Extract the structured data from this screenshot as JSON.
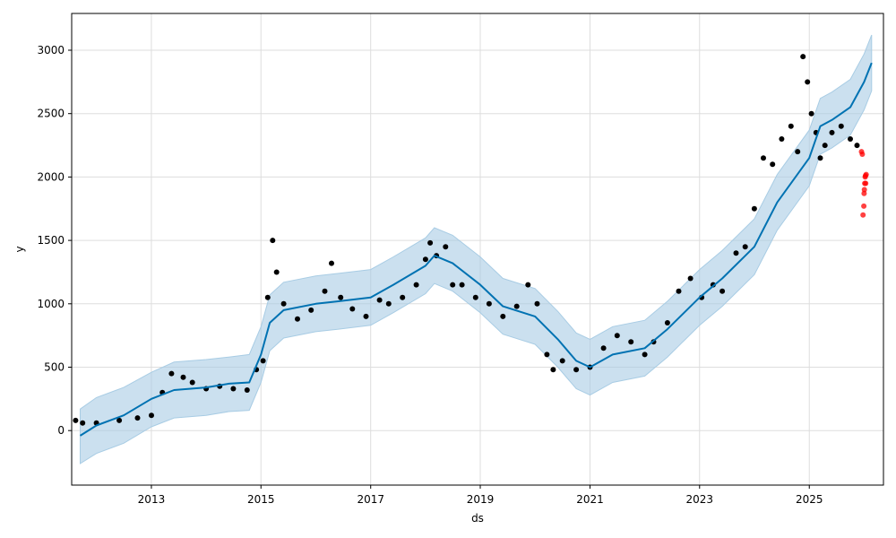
{
  "chart_data": {
    "type": "line",
    "title": "",
    "xlabel": "ds",
    "ylabel": "y",
    "x_ticks": [
      "2013",
      "2015",
      "2017",
      "2019",
      "2021",
      "2023",
      "2025"
    ],
    "y_ticks": [
      "0",
      "500",
      "1000",
      "1500",
      "2000",
      "2500",
      "3000"
    ],
    "xlim": [
      "2011-07-20",
      "2026-05-10"
    ],
    "ylim": [
      -430,
      3290
    ],
    "grid": true,
    "legend": "none",
    "colors": {
      "forecast": "#0072B2",
      "interval": "#A8CCE4",
      "observed": "#000000",
      "holdout": "#FF0000",
      "grid": "#DDDDDD"
    },
    "series": [
      {
        "role": "forecast",
        "x": [
          "2011-09-15",
          "2012-01-01",
          "2012-07-01",
          "2013-01-01",
          "2013-06-01",
          "2014-01-01",
          "2014-06-01",
          "2014-10-15",
          "2015-01-01",
          "2015-03-01",
          "2015-06-01",
          "2016-01-01",
          "2016-06-01",
          "2017-01-01",
          "2017-06-01",
          "2018-01-01",
          "2018-03-01",
          "2018-07-01",
          "2019-01-01",
          "2019-06-01",
          "2020-01-01",
          "2020-06-01",
          "2020-10-01",
          "2021-01-01",
          "2021-06-01",
          "2022-01-01",
          "2022-06-01",
          "2023-01-01",
          "2023-06-01",
          "2024-01-01",
          "2024-06-01",
          "2025-01-01",
          "2025-03-15",
          "2025-06-01",
          "2025-10-01",
          "2026-01-01",
          "2026-02-20"
        ],
        "y": [
          -40,
          40,
          120,
          250,
          320,
          340,
          370,
          380,
          600,
          850,
          950,
          1000,
          1020,
          1050,
          1150,
          1300,
          1380,
          1320,
          1150,
          980,
          900,
          720,
          550,
          500,
          600,
          650,
          800,
          1050,
          1200,
          1450,
          1800,
          2150,
          2400,
          2450,
          2550,
          2750,
          2900
        ]
      },
      {
        "role": "interval",
        "x": [
          "2011-09-15",
          "2012-01-01",
          "2012-07-01",
          "2013-01-01",
          "2013-06-01",
          "2014-01-01",
          "2014-06-01",
          "2014-10-15",
          "2015-01-01",
          "2015-03-01",
          "2015-06-01",
          "2016-01-01",
          "2016-06-01",
          "2017-01-01",
          "2017-06-01",
          "2018-01-01",
          "2018-03-01",
          "2018-07-01",
          "2019-01-01",
          "2019-06-01",
          "2020-01-01",
          "2020-06-01",
          "2020-10-01",
          "2021-01-01",
          "2021-06-01",
          "2022-01-01",
          "2022-06-01",
          "2023-01-01",
          "2023-06-01",
          "2024-01-01",
          "2024-06-01",
          "2025-01-01",
          "2025-03-15",
          "2025-06-01",
          "2025-10-01",
          "2026-01-01",
          "2026-02-20"
        ],
        "upper": [
          170,
          260,
          340,
          460,
          540,
          560,
          580,
          600,
          820,
          1070,
          1170,
          1220,
          1240,
          1270,
          1370,
          1520,
          1600,
          1540,
          1370,
          1200,
          1120,
          940,
          770,
          720,
          820,
          870,
          1020,
          1270,
          1420,
          1670,
          2020,
          2370,
          2620,
          2670,
          2770,
          2970,
          3120
        ],
        "lower": [
          -260,
          -180,
          -100,
          30,
          100,
          120,
          150,
          160,
          380,
          630,
          730,
          780,
          800,
          830,
          930,
          1080,
          1160,
          1100,
          930,
          760,
          680,
          500,
          330,
          280,
          380,
          430,
          580,
          830,
          980,
          1230,
          1580,
          1930,
          2180,
          2230,
          2330,
          2530,
          2680
        ]
      },
      {
        "role": "observed",
        "x": [
          "2011-08-15",
          "2011-10-01",
          "2012-01-01",
          "2012-06-01",
          "2012-10-01",
          "2013-01-01",
          "2013-03-15",
          "2013-05-15",
          "2013-08-01",
          "2013-10-01",
          "2014-01-01",
          "2014-04-01",
          "2014-07-01",
          "2014-10-01",
          "2014-12-01",
          "2015-01-15",
          "2015-02-15",
          "2015-03-20",
          "2015-04-15",
          "2015-06-01",
          "2015-09-01",
          "2015-12-01",
          "2016-03-01",
          "2016-04-15",
          "2016-06-15",
          "2016-09-01",
          "2016-12-01",
          "2017-03-01",
          "2017-05-01",
          "2017-08-01",
          "2017-11-01",
          "2018-01-01",
          "2018-02-01",
          "2018-03-15",
          "2018-05-15",
          "2018-07-01",
          "2018-09-01",
          "2018-12-01",
          "2019-03-01",
          "2019-06-01",
          "2019-09-01",
          "2019-11-15",
          "2020-01-15",
          "2020-03-20",
          "2020-05-01",
          "2020-07-01",
          "2020-10-01",
          "2021-01-01",
          "2021-04-01",
          "2021-07-01",
          "2021-10-01",
          "2022-01-01",
          "2022-03-01",
          "2022-06-01",
          "2022-08-15",
          "2022-11-01",
          "2023-01-15",
          "2023-04-01",
          "2023-06-01",
          "2023-09-01",
          "2023-11-01",
          "2024-01-01",
          "2024-03-01",
          "2024-05-01",
          "2024-07-01",
          "2024-09-01",
          "2024-10-15",
          "2024-11-20",
          "2024-12-20",
          "2025-01-15",
          "2025-02-15",
          "2025-03-15",
          "2025-04-15",
          "2025-06-01",
          "2025-08-01",
          "2025-10-01",
          "2025-11-15"
        ],
        "y": [
          80,
          60,
          60,
          80,
          100,
          120,
          300,
          450,
          420,
          380,
          330,
          350,
          330,
          320,
          480,
          550,
          1050,
          1500,
          1250,
          1000,
          880,
          950,
          1100,
          1320,
          1050,
          960,
          900,
          1030,
          1000,
          1050,
          1150,
          1350,
          1480,
          1380,
          1450,
          1150,
          1150,
          1050,
          1000,
          900,
          980,
          1150,
          1000,
          600,
          480,
          550,
          480,
          500,
          650,
          750,
          700,
          600,
          700,
          850,
          1100,
          1200,
          1050,
          1150,
          1100,
          1400,
          1450,
          1750,
          2150,
          2100,
          2300,
          2400,
          2200,
          2950,
          2750,
          2500,
          2350,
          2150,
          2250,
          2350,
          2400,
          2300,
          2250
        ]
      },
      {
        "role": "holdout",
        "x": [
          "2025-12-15",
          "2025-12-20",
          "2025-12-25",
          "2025-12-30",
          "2026-01-01",
          "2026-01-03",
          "2026-01-05",
          "2026-01-08",
          "2026-01-10",
          "2026-01-12",
          "2026-01-15"
        ],
        "y": [
          2200,
          2180,
          1700,
          1770,
          1870,
          1900,
          1950,
          2000,
          2010,
          1950,
          2020
        ]
      }
    ]
  }
}
